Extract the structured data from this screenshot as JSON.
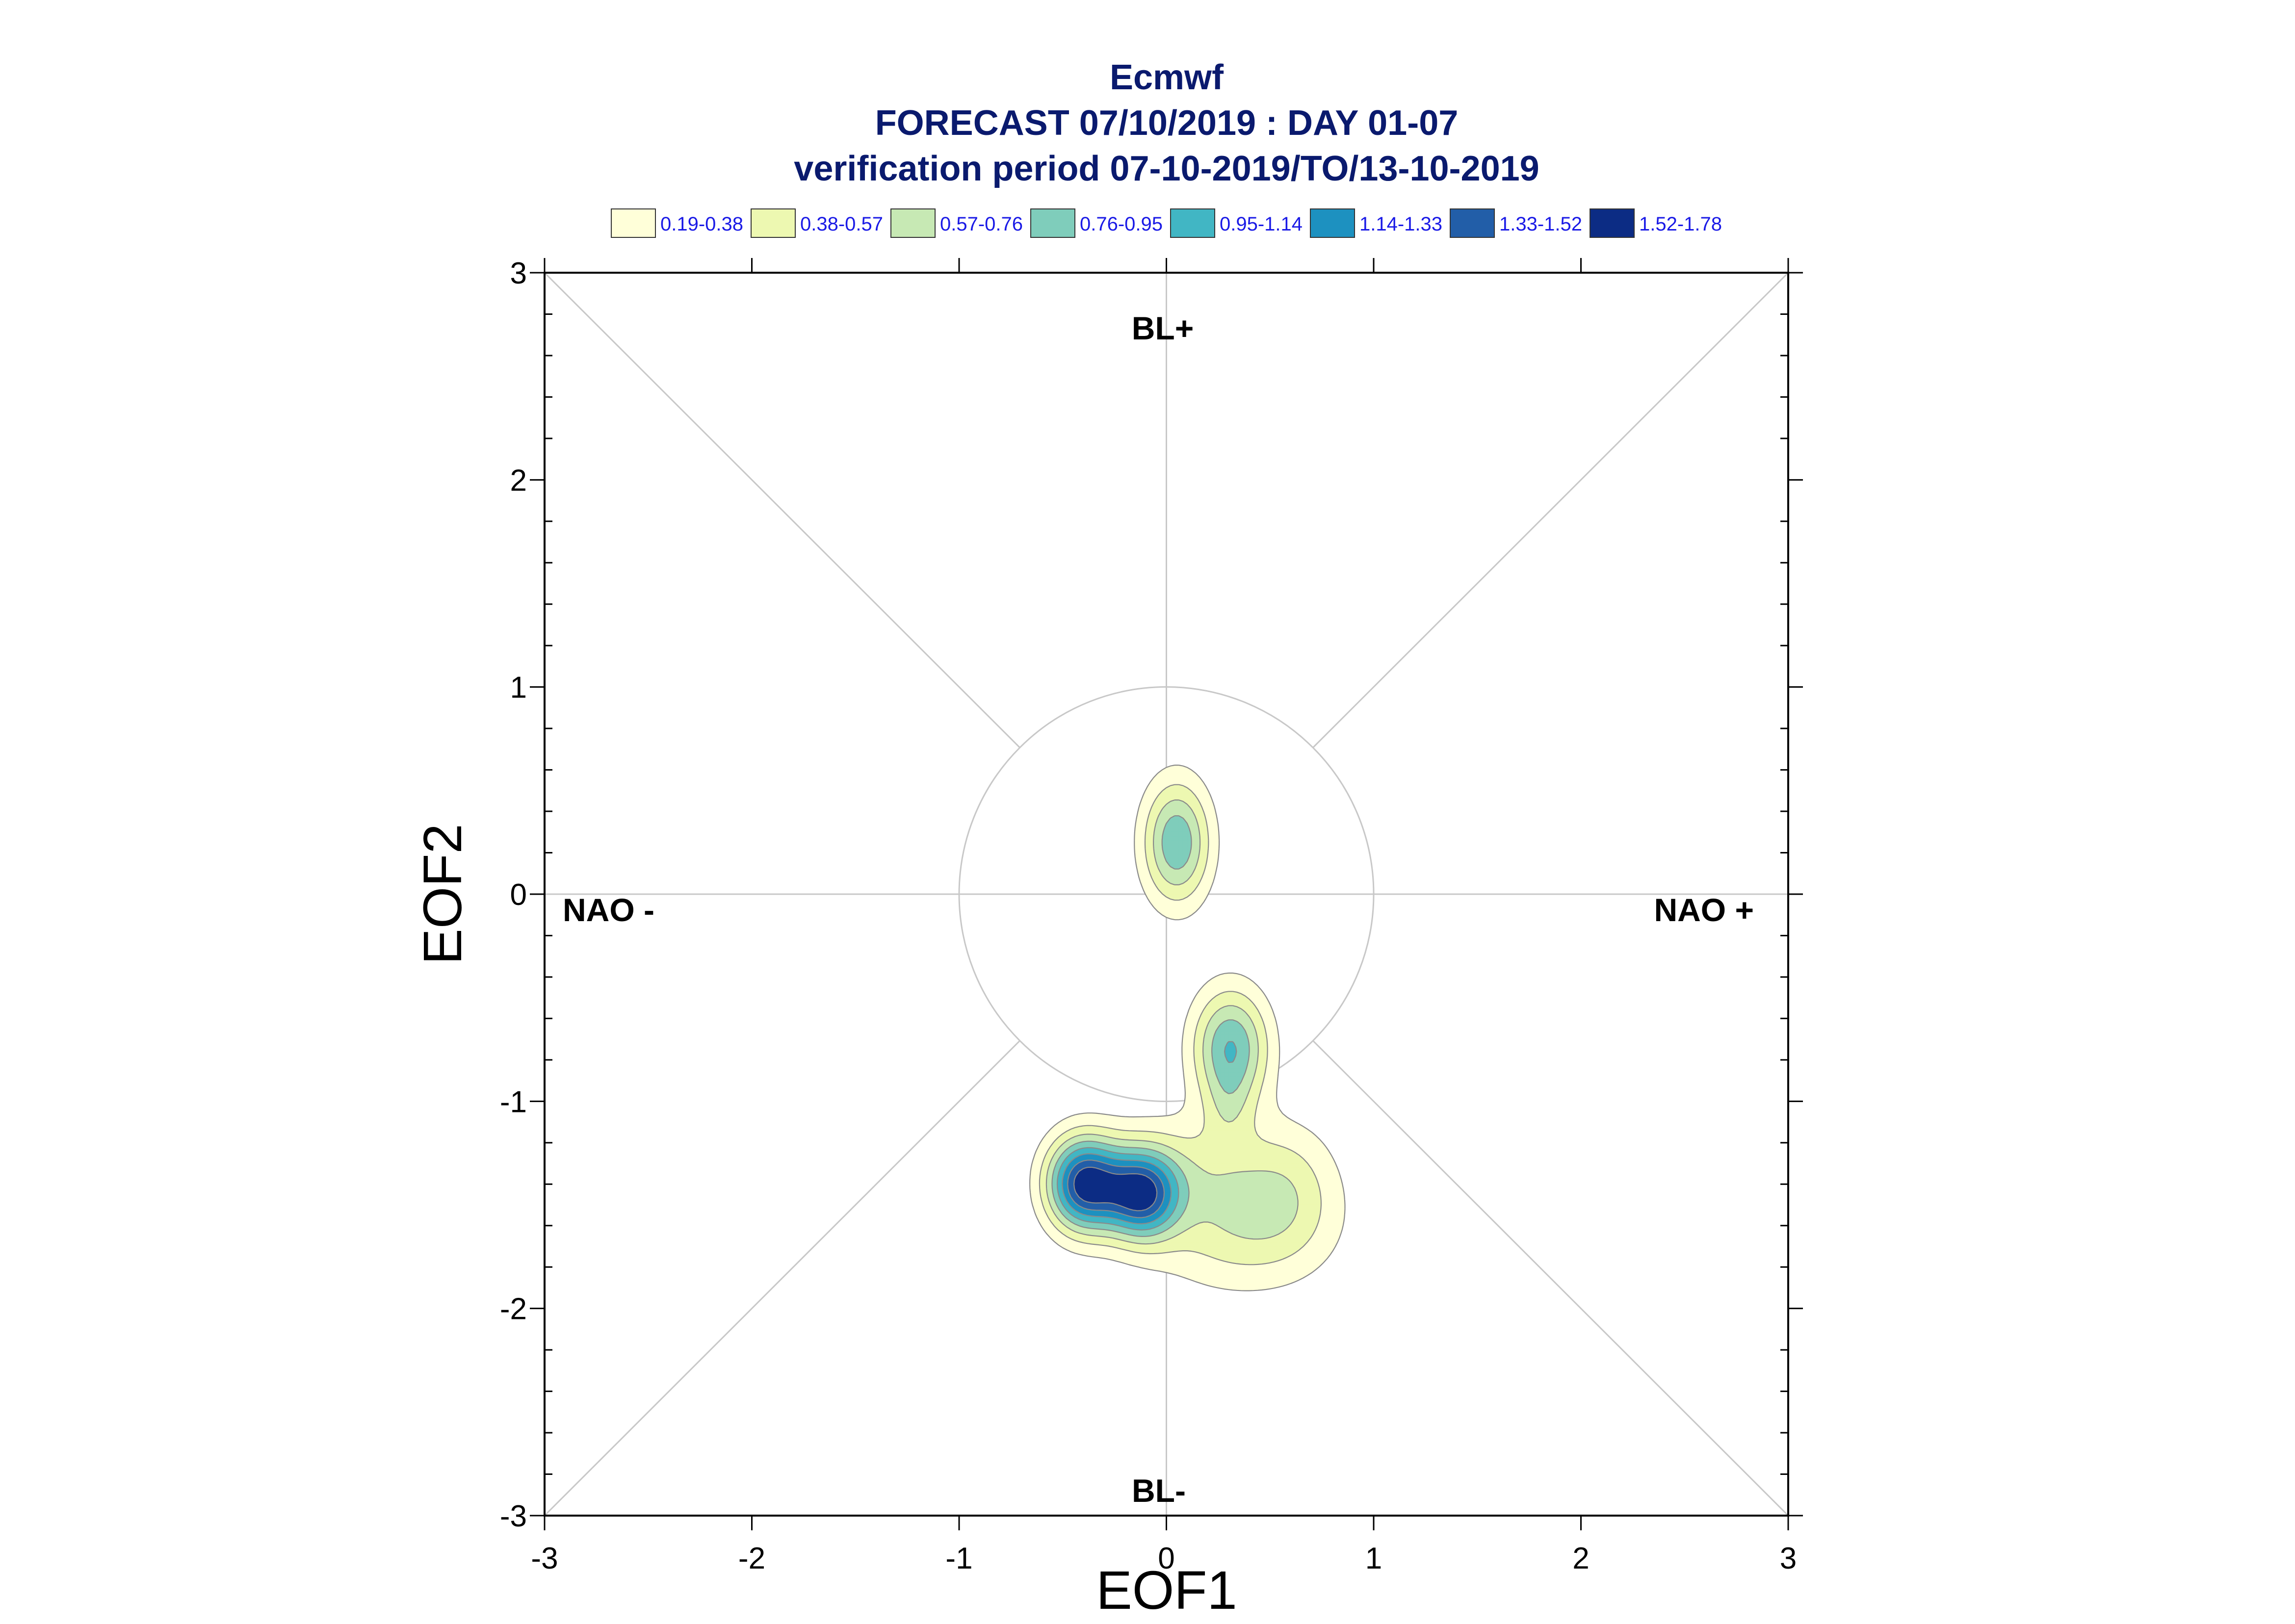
{
  "chart_data": {
    "type": "contour",
    "title_lines": [
      "Ecmwf",
      "FORECAST 07/10/2019 : DAY 01-07",
      "verification period 07-10-2019/TO/13-10-2019"
    ],
    "xlabel": "EOF1",
    "ylabel": "EOF2",
    "xlim": [
      -3,
      3
    ],
    "ylim": [
      -3,
      3
    ],
    "x_ticks": [
      "-3",
      "-2",
      "-1",
      "0",
      "1",
      "2",
      "3"
    ],
    "y_ticks": [
      "-3",
      "-2",
      "-1",
      "0",
      "1",
      "2",
      "3"
    ],
    "region_labels": [
      "BL+",
      "BL-",
      "NAO -",
      "NAO +"
    ],
    "reference_circle_radius": 1,
    "legend": [
      {
        "label": "0.19-0.38",
        "color": "#ffffd9"
      },
      {
        "label": "0.38-0.57",
        "color": "#edf8b1"
      },
      {
        "label": "0.57-0.76",
        "color": "#c7e9b4"
      },
      {
        "label": "0.76-0.95",
        "color": "#7fcdbb"
      },
      {
        "label": "0.95-1.14",
        "color": "#41b6c4"
      },
      {
        "label": "1.14-1.33",
        "color": "#1d91c0"
      },
      {
        "label": "1.33-1.52",
        "color": "#225ea8"
      },
      {
        "label": "1.52-1.78",
        "color": "#0c2c84"
      }
    ],
    "density_peaks": [
      {
        "x": 0.05,
        "y": 0.25,
        "sx": 0.115,
        "sy": 0.21,
        "amp": 0.92
      },
      {
        "x": 0.31,
        "y": -0.74,
        "sx": 0.13,
        "sy": 0.2,
        "amp": 0.95
      },
      {
        "x": -0.4,
        "y": -1.4,
        "sx": 0.125,
        "sy": 0.16,
        "amp": 1.52
      },
      {
        "x": -0.12,
        "y": -1.45,
        "sx": 0.125,
        "sy": 0.15,
        "amp": 1.36
      },
      {
        "x": 0.35,
        "y": -1.6,
        "sx": 0.3,
        "sy": 0.22,
        "amp": 0.5
      },
      {
        "x": 0.1,
        "y": -1.3,
        "sx": 0.3,
        "sy": 0.18,
        "amp": 0.3
      },
      {
        "x": 0.6,
        "y": -1.4,
        "sx": 0.17,
        "sy": 0.23,
        "amp": 0.28
      },
      {
        "x": 0.3,
        "y": -1.03,
        "sx": 0.08,
        "sy": 0.13,
        "amp": 0.22
      }
    ]
  }
}
